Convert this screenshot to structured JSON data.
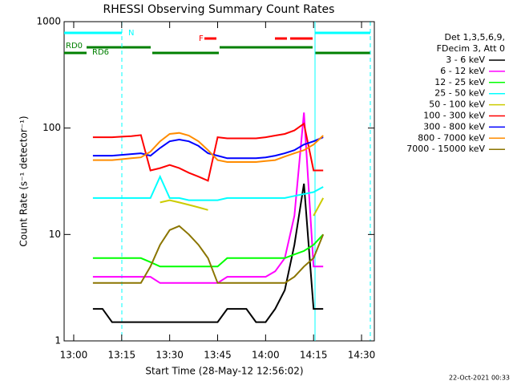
{
  "chart_data": {
    "type": "line",
    "title": "RHESSI Observing Summary Count Rates",
    "x_label": "Start Time (28-May-12 12:56:02)",
    "y_label": "Count Rate (s⁻¹ detector⁻¹)",
    "legend_header": [
      "Det 1,3,5,6,9,",
      "FDecim 3, Att 0"
    ],
    "footer": "22-Oct-2021 00:33",
    "annotations": [
      {
        "text": "N",
        "color": "#00ffff"
      },
      {
        "text": "RD0",
        "color": "#008000"
      },
      {
        "text": "RD6",
        "color": "#008000"
      },
      {
        "text": "F",
        "color": "#ff0000"
      }
    ],
    "log_y": true,
    "xlim": [
      "12:57",
      "14:34"
    ],
    "xticks": [
      "13:00",
      "13:15",
      "13:30",
      "13:45",
      "14:00",
      "14:15",
      "14:30"
    ],
    "ylim": [
      1,
      1000
    ],
    "yticks": [
      1,
      10,
      100,
      1000
    ],
    "x": [
      "13:06",
      "13:09",
      "13:12",
      "13:15",
      "13:18",
      "13:21",
      "13:24",
      "13:27",
      "13:30",
      "13:33",
      "13:36",
      "13:39",
      "13:42",
      "13:45",
      "13:48",
      "13:51",
      "13:54",
      "13:57",
      "14:00",
      "14:03",
      "14:06",
      "14:09",
      "14:12",
      "14:15",
      "14:18"
    ],
    "series": [
      {
        "name": "3 - 6 keV",
        "color": "#000000",
        "values": [
          2,
          2,
          1.5,
          1.5,
          1.5,
          1.5,
          1.5,
          1.5,
          1.5,
          1.5,
          1.5,
          1.5,
          1.5,
          1.5,
          2,
          2,
          2,
          1.5,
          1.5,
          2,
          3,
          8,
          30,
          2,
          2
        ]
      },
      {
        "name": "6 - 12 keV",
        "color": "#ff00ff",
        "values": [
          4,
          4,
          4,
          4,
          4,
          4,
          4,
          3.5,
          3.5,
          3.5,
          3.5,
          3.5,
          3.5,
          3.5,
          4,
          4,
          4,
          4,
          4,
          4.5,
          6,
          15,
          140,
          5,
          5
        ]
      },
      {
        "name": "12 - 25 keV",
        "color": "#00ff00",
        "values": [
          6,
          6,
          6,
          6,
          6,
          6,
          5.5,
          5,
          5,
          5,
          5,
          5,
          5,
          5,
          6,
          6,
          6,
          6,
          6,
          6,
          6,
          6.5,
          7,
          8,
          10
        ]
      },
      {
        "name": "25 - 50 keV",
        "color": "#00ffff",
        "values": [
          22,
          22,
          22,
          22,
          22,
          22,
          22,
          35,
          22,
          22,
          21,
          21,
          21,
          21,
          22,
          22,
          22,
          22,
          22,
          22,
          22,
          23,
          24,
          25,
          28
        ]
      },
      {
        "name": "50 - 100 keV",
        "color": "#cccc00",
        "values": [
          null,
          null,
          null,
          null,
          null,
          null,
          null,
          20,
          21,
          20,
          19,
          18,
          17,
          null,
          null,
          null,
          null,
          null,
          null,
          null,
          null,
          null,
          null,
          15,
          22
        ]
      },
      {
        "name": "100 - 300 keV",
        "color": "#ff0000",
        "values": [
          82,
          82,
          82,
          83,
          84,
          86,
          40,
          42,
          45,
          42,
          38,
          35,
          32,
          82,
          80,
          80,
          80,
          80,
          82,
          85,
          88,
          95,
          110,
          40,
          40
        ]
      },
      {
        "name": "300 - 800 keV",
        "color": "#0000ff",
        "values": [
          55,
          55,
          55,
          56,
          57,
          58,
          55,
          65,
          75,
          78,
          75,
          68,
          58,
          55,
          52,
          52,
          52,
          52,
          53,
          55,
          58,
          62,
          70,
          75,
          82
        ]
      },
      {
        "name": "800 - 7000 keV",
        "color": "#ff8c00",
        "values": [
          50,
          50,
          50,
          51,
          52,
          53,
          60,
          75,
          88,
          90,
          85,
          75,
          62,
          50,
          48,
          48,
          48,
          48,
          49,
          50,
          54,
          58,
          62,
          70,
          85
        ]
      },
      {
        "name": "7000 - 15000 keV",
        "color": "#8b7500",
        "values": [
          3.5,
          3.5,
          3.5,
          3.5,
          3.5,
          3.5,
          5,
          8,
          11,
          12,
          10,
          8,
          6,
          3.5,
          3.5,
          3.5,
          3.5,
          3.5,
          3.5,
          3.5,
          3.5,
          4,
          5,
          6,
          10
        ]
      }
    ]
  }
}
